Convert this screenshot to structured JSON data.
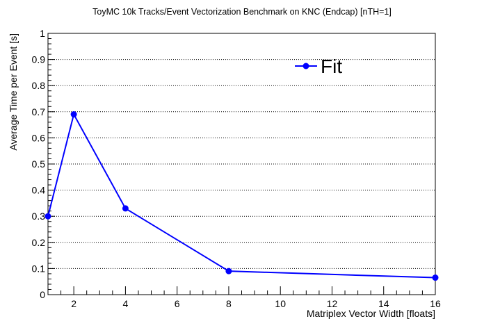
{
  "chart_data": {
    "type": "line",
    "title": "ToyMC 10k Tracks/Event Vectorization Benchmark on KNC (Endcap) [nTH=1]",
    "xlabel": "Matriplex Vector Width [floats]",
    "ylabel": "Average Time per Event [s]",
    "xlim": [
      1,
      16
    ],
    "ylim": [
      0,
      1
    ],
    "x_ticks": [
      2,
      4,
      6,
      8,
      10,
      12,
      14,
      16
    ],
    "y_ticks": [
      0,
      0.1,
      0.2,
      0.3,
      0.4,
      0.5,
      0.6,
      0.7,
      0.8,
      0.9,
      1
    ],
    "y_tick_labels": [
      "0",
      "0.1",
      "0.2",
      "0.3",
      "0.4",
      "0.5",
      "0.6",
      "0.7",
      "0.8",
      "0.9",
      "1"
    ],
    "x_tick_labels": [
      "2",
      "4",
      "6",
      "8",
      "10",
      "12",
      "14",
      "16"
    ],
    "grid": "horizontal-dotted",
    "legend_position": "top-right",
    "series": [
      {
        "name": "Fit",
        "color": "#0000ff",
        "x": [
          1,
          2,
          4,
          8,
          16
        ],
        "y": [
          0.3,
          0.69,
          0.33,
          0.09,
          0.065
        ]
      }
    ]
  }
}
